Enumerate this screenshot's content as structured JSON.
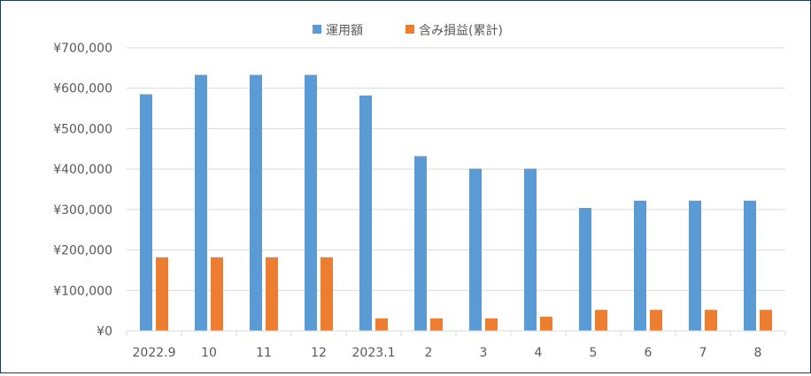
{
  "chart_data": {
    "type": "bar",
    "title": "",
    "xlabel": "",
    "ylabel": "",
    "categories": [
      "2022.9",
      "10",
      "11",
      "12",
      "2023.1",
      "2",
      "3",
      "4",
      "5",
      "6",
      "7",
      "8"
    ],
    "series": [
      {
        "name": "運用額",
        "color": "#5B9BD5",
        "values": [
          585000,
          633000,
          633000,
          633000,
          582000,
          432000,
          401000,
          401000,
          304000,
          322000,
          322000,
          322000
        ]
      },
      {
        "name": "含み損益(累計)",
        "color": "#ED7D31",
        "values": [
          182000,
          182000,
          182000,
          182000,
          31000,
          31000,
          31000,
          35000,
          52000,
          52000,
          52000,
          52000
        ]
      }
    ],
    "ylim": [
      0,
      700000
    ],
    "y_ticks": [
      0,
      100000,
      200000,
      300000,
      400000,
      500000,
      600000,
      700000
    ],
    "y_tick_labels": [
      "¥0",
      "¥100,000",
      "¥200,000",
      "¥300,000",
      "¥400,000",
      "¥500,000",
      "¥600,000",
      "¥700,000"
    ],
    "grid": true,
    "legend_position": "top-center"
  }
}
